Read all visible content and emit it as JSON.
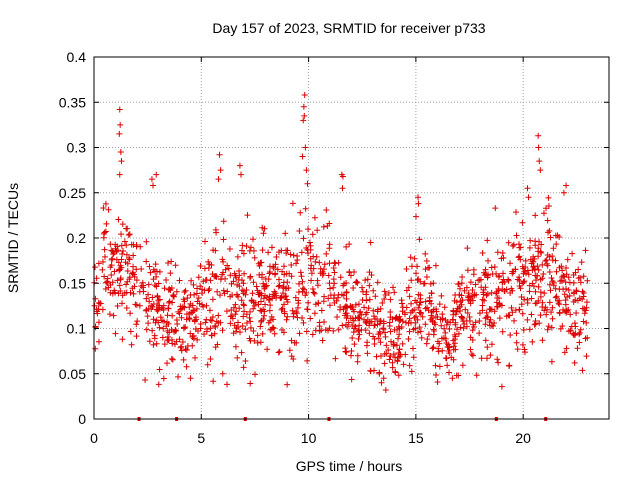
{
  "chart_data": {
    "type": "scatter",
    "title": "Day 157 of 2023, SRMTID for receiver p733",
    "xlabel": "GPS time / hours",
    "ylabel": "SRMTID / TECUs",
    "xlim": [
      0,
      24
    ],
    "ylim": [
      0,
      0.4
    ],
    "xticks": [
      0,
      5,
      10,
      15,
      20
    ],
    "yticks": [
      0,
      0.05,
      0.1,
      0.15,
      0.2,
      0.25,
      0.3,
      0.35,
      0.4
    ],
    "grid": true,
    "marker": "plus",
    "series_color": "#dd0000",
    "generation_note_points": 1500,
    "envelope": {
      "x": [
        0.0,
        0.5,
        1.0,
        1.5,
        2.0,
        2.5,
        3.0,
        3.5,
        4.0,
        4.5,
        5.0,
        5.5,
        6.0,
        6.5,
        7.0,
        7.5,
        8.0,
        8.5,
        9.0,
        9.5,
        10.0,
        10.5,
        11.0,
        11.5,
        12.0,
        12.5,
        13.0,
        13.5,
        14.0,
        14.5,
        15.0,
        15.5,
        16.0,
        16.5,
        17.0,
        17.5,
        18.0,
        18.5,
        19.0,
        19.5,
        20.0,
        20.5,
        21.0,
        21.5,
        22.0,
        22.5,
        23.0
      ],
      "center": [
        0.13,
        0.17,
        0.16,
        0.17,
        0.14,
        0.14,
        0.12,
        0.12,
        0.11,
        0.11,
        0.12,
        0.13,
        0.14,
        0.13,
        0.13,
        0.13,
        0.14,
        0.14,
        0.13,
        0.14,
        0.15,
        0.14,
        0.14,
        0.13,
        0.12,
        0.12,
        0.11,
        0.1,
        0.08,
        0.1,
        0.13,
        0.14,
        0.1,
        0.09,
        0.11,
        0.12,
        0.12,
        0.13,
        0.13,
        0.14,
        0.14,
        0.15,
        0.16,
        0.15,
        0.13,
        0.12,
        0.12
      ],
      "spread": [
        0.035,
        0.04,
        0.04,
        0.035,
        0.04,
        0.035,
        0.035,
        0.035,
        0.03,
        0.03,
        0.035,
        0.04,
        0.045,
        0.035,
        0.04,
        0.035,
        0.035,
        0.035,
        0.035,
        0.04,
        0.045,
        0.04,
        0.035,
        0.035,
        0.035,
        0.03,
        0.03,
        0.03,
        0.025,
        0.03,
        0.04,
        0.035,
        0.03,
        0.025,
        0.03,
        0.03,
        0.035,
        0.035,
        0.035,
        0.035,
        0.035,
        0.04,
        0.04,
        0.04,
        0.035,
        0.035,
        0.03
      ]
    },
    "spikes": [
      {
        "x": 1.2,
        "y": 0.342
      },
      {
        "x": 1.22,
        "y": 0.325
      },
      {
        "x": 1.18,
        "y": 0.315
      },
      {
        "x": 1.25,
        "y": 0.295
      },
      {
        "x": 1.28,
        "y": 0.285
      },
      {
        "x": 1.2,
        "y": 0.27
      },
      {
        "x": 2.7,
        "y": 0.265
      },
      {
        "x": 2.75,
        "y": 0.258
      },
      {
        "x": 2.9,
        "y": 0.27
      },
      {
        "x": 5.85,
        "y": 0.292
      },
      {
        "x": 5.9,
        "y": 0.275
      },
      {
        "x": 5.8,
        "y": 0.265
      },
      {
        "x": 6.8,
        "y": 0.28
      },
      {
        "x": 6.85,
        "y": 0.27
      },
      {
        "x": 9.82,
        "y": 0.358
      },
      {
        "x": 9.78,
        "y": 0.345
      },
      {
        "x": 9.8,
        "y": 0.335
      },
      {
        "x": 9.75,
        "y": 0.33
      },
      {
        "x": 9.85,
        "y": 0.3
      },
      {
        "x": 9.72,
        "y": 0.29
      },
      {
        "x": 9.9,
        "y": 0.275
      },
      {
        "x": 9.95,
        "y": 0.26
      },
      {
        "x": 11.55,
        "y": 0.27
      },
      {
        "x": 11.6,
        "y": 0.268
      },
      {
        "x": 11.58,
        "y": 0.255
      },
      {
        "x": 15.1,
        "y": 0.245
      },
      {
        "x": 15.12,
        "y": 0.238
      },
      {
        "x": 20.2,
        "y": 0.255
      },
      {
        "x": 20.25,
        "y": 0.245
      },
      {
        "x": 20.7,
        "y": 0.313
      },
      {
        "x": 20.72,
        "y": 0.3
      },
      {
        "x": 20.75,
        "y": 0.285
      },
      {
        "x": 20.8,
        "y": 0.275
      },
      {
        "x": 22.0,
        "y": 0.258
      },
      {
        "x": 21.9,
        "y": 0.25
      },
      {
        "x": 18.7,
        "y": 0.233
      }
    ],
    "lows": [
      {
        "x": 13.6,
        "y": 0.032
      },
      {
        "x": 13.4,
        "y": 0.04
      },
      {
        "x": 13.5,
        "y": 0.045
      },
      {
        "x": 13.3,
        "y": 0.05
      },
      {
        "x": 9.0,
        "y": 0.038
      },
      {
        "x": 4.5,
        "y": 0.045
      },
      {
        "x": 16.7,
        "y": 0.045
      },
      {
        "x": 16.9,
        "y": 0.048
      },
      {
        "x": 22.4,
        "y": 0.062
      },
      {
        "x": 6.0,
        "y": 0.05
      }
    ],
    "baseline_markers": [
      2.1,
      3.85,
      7.05,
      10.95,
      18.75,
      21.05
    ]
  }
}
